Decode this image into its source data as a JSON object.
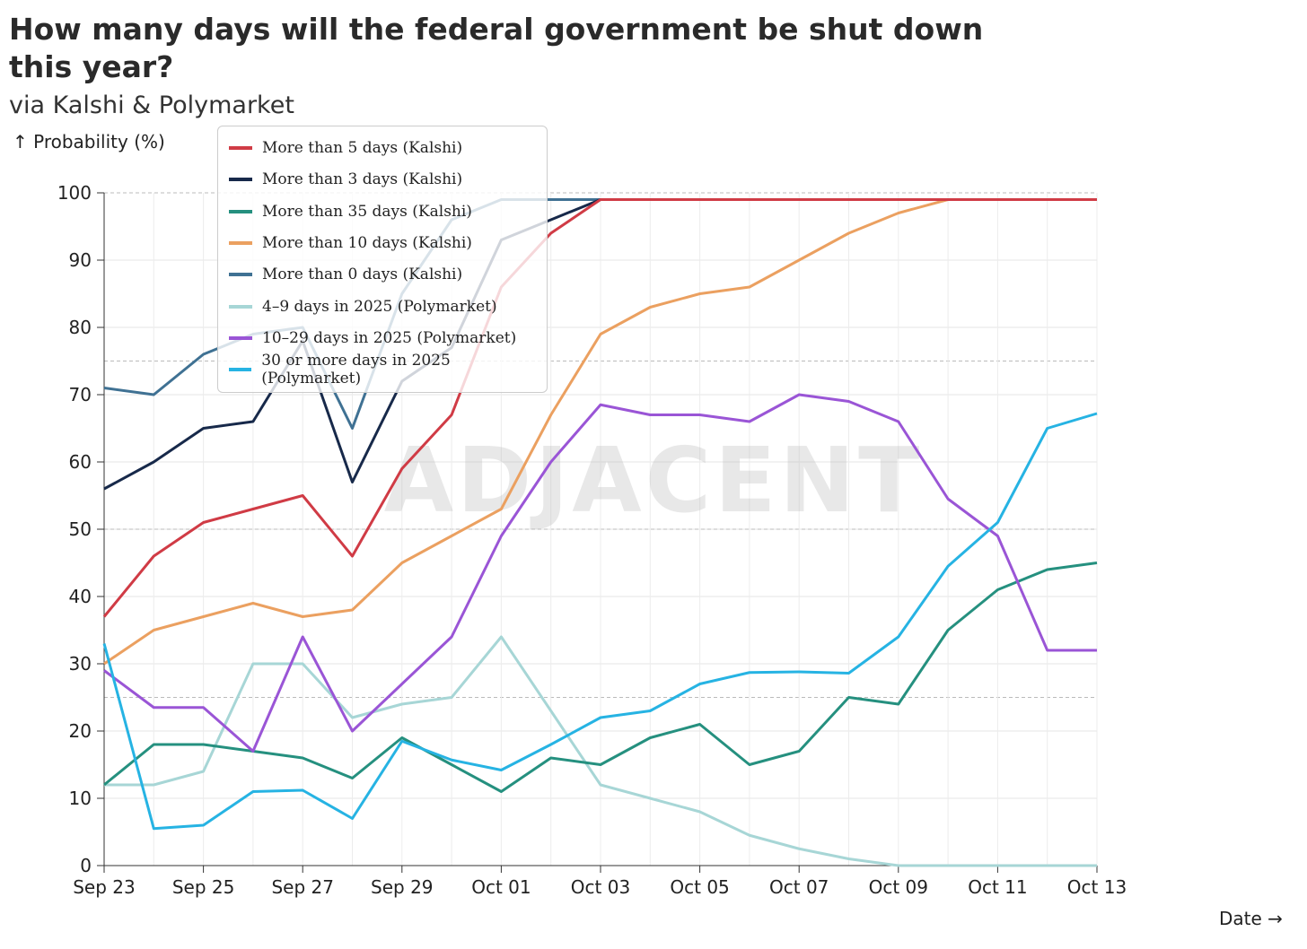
{
  "title": "How many days will the federal government be shut down this year?",
  "subtitle": "via Kalshi & Polymarket",
  "watermark": "ADJACENT",
  "chart_data": {
    "type": "line",
    "title": "How many days will the federal government be shut down this year?",
    "ylabel": "↑ Probability (%)",
    "xlabel": "Date →",
    "ylim": [
      0,
      100
    ],
    "yticks": [
      "0",
      "10",
      "20",
      "30",
      "40",
      "50",
      "60",
      "70",
      "80",
      "90",
      "100"
    ],
    "x": [
      "Sep 23",
      "Sep 24",
      "Sep 25",
      "Sep 26",
      "Sep 27",
      "Sep 28",
      "Sep 29",
      "Sep 30",
      "Oct 01",
      "Oct 02",
      "Oct 03",
      "Oct 04",
      "Oct 05",
      "Oct 06",
      "Oct 07",
      "Oct 08",
      "Oct 09",
      "Oct 10",
      "Oct 11",
      "Oct 12",
      "Oct 13"
    ],
    "xticks": [
      "Sep 23",
      "Sep 25",
      "Sep 27",
      "Sep 29",
      "Oct 01",
      "Oct 03",
      "Oct 05",
      "Oct 07",
      "Oct 09",
      "Oct 11",
      "Oct 13"
    ],
    "legend_position": "top-left",
    "series": [
      {
        "name": "More than 5 days (Kalshi)",
        "color": "#d03b45",
        "values": [
          37,
          46,
          51,
          53,
          55,
          46,
          59,
          67,
          86,
          94,
          99,
          99,
          99,
          99,
          99,
          99,
          99,
          99,
          99,
          99,
          99
        ]
      },
      {
        "name": "More than 3 days (Kalshi)",
        "color": "#17294a",
        "values": [
          56,
          60,
          65,
          66,
          78,
          57,
          72,
          77,
          93,
          96,
          99,
          99,
          99,
          99,
          99,
          99,
          99,
          99,
          99,
          99,
          99
        ]
      },
      {
        "name": "More than 35 days (Kalshi)",
        "color": "#25907f",
        "values": [
          12,
          18,
          18,
          17,
          16,
          13,
          19,
          15,
          11,
          16,
          15,
          19,
          21,
          15,
          17,
          25,
          24,
          35,
          41,
          44,
          45
        ]
      },
      {
        "name": "More than 10 days (Kalshi)",
        "color": "#eba060",
        "values": [
          30,
          35,
          37,
          39,
          37,
          38,
          45,
          49,
          53,
          67,
          79,
          83,
          85,
          86,
          90,
          94,
          97,
          99,
          99,
          99,
          99
        ]
      },
      {
        "name": "More than 0 days (Kalshi)",
        "color": "#3f7193",
        "values": [
          71,
          70,
          76,
          79,
          80,
          65,
          85,
          96,
          99,
          99,
          99,
          99,
          99,
          99,
          99,
          99,
          99,
          99,
          99,
          99,
          99
        ]
      },
      {
        "name": "4–9 days in 2025 (Polymarket)",
        "color": "#a7d6d6",
        "values": [
          12,
          12,
          14,
          30,
          30,
          22,
          24,
          25,
          34,
          23,
          12,
          10,
          8,
          4.5,
          2.5,
          1,
          0,
          0,
          0,
          0,
          0
        ]
      },
      {
        "name": "10–29 days in 2025 (Polymarket)",
        "color": "#9a55d6",
        "values": [
          29,
          23.5,
          23.5,
          17,
          34,
          20,
          27,
          34,
          49,
          60,
          68.5,
          67,
          67,
          66,
          70,
          69,
          66,
          54.5,
          49,
          32,
          32
        ]
      },
      {
        "name": "30 or more days in 2025 (Polymarket)",
        "color": "#26b3e3",
        "values": [
          33,
          5.5,
          6,
          11,
          11.2,
          7,
          18.5,
          15.7,
          14.2,
          18,
          22,
          23,
          27,
          28.7,
          28.8,
          28.6,
          34,
          44.5,
          51,
          65,
          67.2
        ]
      }
    ]
  }
}
